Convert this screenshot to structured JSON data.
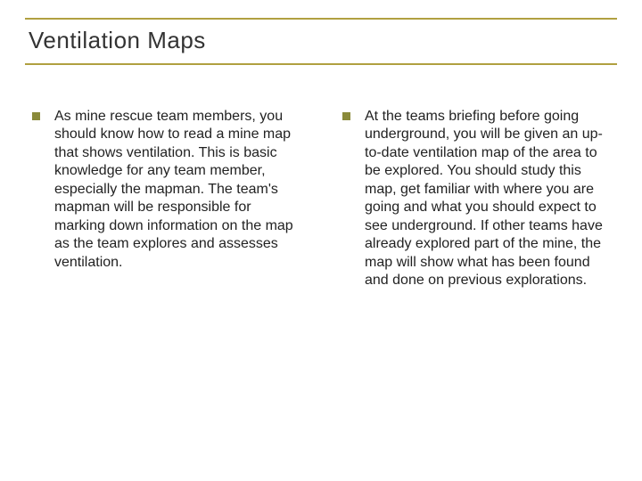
{
  "title": "Ventilation Maps",
  "columns": [
    {
      "text": "As mine rescue team members, you should know how to read a mine map that shows ventilation. This is basic knowledge for any team member, especially the mapman. The team's mapman will be responsible for marking down information on the map as the team explores and assesses ventilation."
    },
    {
      "text": "At the teams briefing before going underground, you will be given an up-to-date ventilation map of the area to be explored. You should study this map, get familiar with where you are going and what you should expect to see underground. If other teams have already explored part of the mine, the map will show what has been found and done on previous explorations."
    }
  ],
  "colors": {
    "accent": "#b0a040",
    "bullet": "#8a8a3a",
    "text": "#222222",
    "title": "#333333",
    "background": "#ffffff"
  },
  "fonts": {
    "title_size": 26,
    "body_size": 16,
    "family": "Verdana"
  }
}
